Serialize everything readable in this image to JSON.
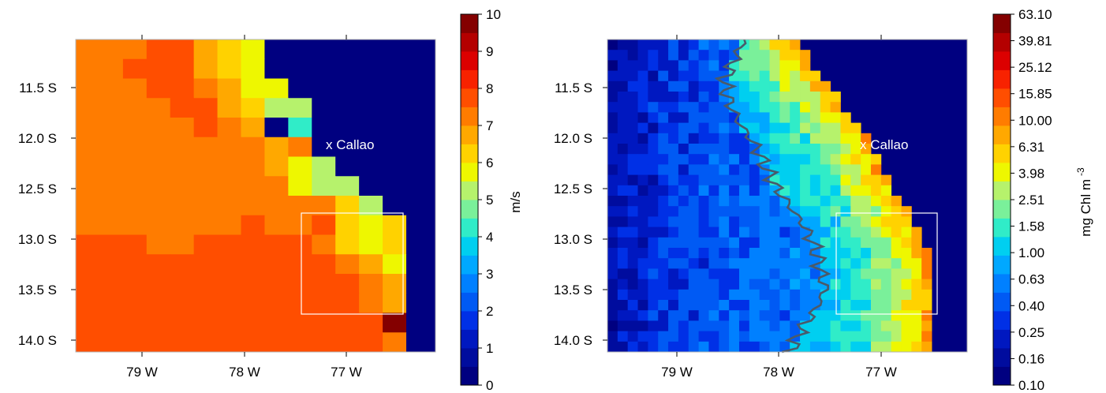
{
  "chart_data": [
    {
      "type": "heatmap",
      "title": "",
      "xlabel": "",
      "ylabel": "",
      "x_ticks": [
        "79 W",
        "78 W",
        "77 W"
      ],
      "x_tick_values": [
        -79,
        -78,
        -77
      ],
      "y_ticks": [
        "11.5 S",
        "12.0 S",
        "12.5 S",
        "13.0 S",
        "13.5 S",
        "14.0 S"
      ],
      "y_tick_values": [
        -11.5,
        -12.0,
        -12.5,
        -13.0,
        -13.5,
        -14.0
      ],
      "xlim": [
        -79.6,
        -76.05
      ],
      "ylim": [
        -14.1,
        -11.1
      ],
      "annotation": "x Callao",
      "annotation_point": {
        "lon": -77.2,
        "lat": -12.05
      },
      "box": {
        "lon": [
          -77.4,
          -76.4
        ],
        "lat": [
          -13.75,
          -12.75
        ]
      },
      "colorbar": {
        "label": "m/s",
        "ticks": [
          "0",
          "1",
          "2",
          "3",
          "4",
          "5",
          "6",
          "7",
          "8",
          "9",
          "10"
        ],
        "levels": 20
      },
      "cell_size_deg": 0.233,
      "grid_origin": {
        "lon": -79.6,
        "lat": -11.1
      },
      "values": [
        [
          7,
          7,
          7,
          7.5,
          7.5,
          6.5,
          6,
          5.5,
          0,
          0,
          0,
          0,
          0,
          0,
          0
        ],
        [
          7,
          7,
          7.5,
          7.5,
          7.5,
          6.5,
          6,
          5.5,
          0,
          0,
          0,
          0,
          0,
          0,
          0
        ],
        [
          7,
          7,
          7,
          7.5,
          7.5,
          7,
          6.5,
          5.5,
          5.5,
          0,
          0,
          0,
          0,
          0,
          0
        ],
        [
          7,
          7,
          7,
          7,
          7.5,
          7.5,
          6.5,
          6,
          5,
          5,
          0,
          0,
          0,
          0,
          0
        ],
        [
          7,
          7,
          7,
          7,
          7,
          7.5,
          7,
          6.5,
          0,
          4,
          0,
          0,
          0,
          0,
          0
        ],
        [
          7,
          7,
          7,
          7,
          7,
          7,
          7,
          7,
          6.5,
          7,
          0,
          0,
          0,
          0,
          0
        ],
        [
          7,
          7,
          7,
          7,
          7,
          7,
          7,
          7,
          6.5,
          5.5,
          5,
          0,
          0,
          0,
          0
        ],
        [
          7,
          7,
          7,
          7,
          7,
          7,
          7,
          7,
          7,
          5.5,
          5,
          5,
          0,
          0,
          0
        ],
        [
          7,
          7,
          7,
          7,
          7,
          7,
          7,
          7,
          7,
          7,
          7,
          6,
          5,
          0,
          0
        ],
        [
          7,
          7,
          7,
          7,
          7,
          7,
          7,
          7.5,
          7,
          7,
          7.5,
          6,
          5.5,
          6,
          0
        ],
        [
          7.5,
          7.5,
          7.5,
          7,
          7,
          7.5,
          7.5,
          7.5,
          7.5,
          7.5,
          7,
          6,
          5.5,
          6,
          0
        ],
        [
          7.5,
          7.5,
          7.5,
          7.5,
          7.5,
          7.5,
          7.5,
          7.5,
          7.5,
          7.5,
          7.5,
          7,
          6.5,
          5.5,
          0
        ],
        [
          7.5,
          7.5,
          7.5,
          7.5,
          7.5,
          7.5,
          7.5,
          7.5,
          7.5,
          7.5,
          7.5,
          7.5,
          7,
          6.5,
          0
        ],
        [
          7.5,
          7.5,
          7.5,
          7.5,
          7.5,
          7.5,
          7.5,
          7.5,
          7.5,
          7.5,
          7.5,
          7.5,
          7,
          6.5,
          0
        ],
        [
          7.5,
          7.5,
          7.5,
          7.5,
          7.5,
          7.5,
          7.5,
          7.5,
          7.5,
          7.5,
          7.5,
          7.5,
          7.5,
          9.5,
          0
        ],
        [
          7.5,
          7.5,
          7.5,
          7.5,
          7.5,
          7.5,
          7.5,
          7.5,
          7.5,
          7.5,
          7.5,
          7.5,
          7.5,
          7,
          0
        ]
      ]
    },
    {
      "type": "heatmap",
      "title": "",
      "xlabel": "",
      "ylabel": "",
      "x_ticks": [
        "79 W",
        "78 W",
        "77 W"
      ],
      "x_tick_values": [
        -79,
        -78,
        -77
      ],
      "y_ticks": [
        "11.5 S",
        "12.0 S",
        "12.5 S",
        "13.0 S",
        "13.5 S",
        "14.0 S"
      ],
      "y_tick_values": [
        -11.5,
        -12.0,
        -12.5,
        -13.0,
        -13.5,
        -14.0
      ],
      "xlim": [
        -79.6,
        -76.05
      ],
      "ylim": [
        -14.1,
        -11.1
      ],
      "annotation": "x Callao",
      "annotation_point": {
        "lon": -77.2,
        "lat": -12.05
      },
      "box": {
        "lon": [
          -77.4,
          -76.4
        ],
        "lat": [
          -13.75,
          -12.75
        ]
      },
      "colorbar": {
        "label": "mg Chl m",
        "label_superscript": "-3",
        "ticks": [
          "0.10",
          "0.16",
          "0.25",
          "0.40",
          "0.63",
          "1.00",
          "1.58",
          "2.51",
          "3.98",
          "6.31",
          "10.00",
          "15.85",
          "25.12",
          "39.81",
          "63.10"
        ],
        "scale": "log"
      },
      "contour_level": 1.0,
      "cell_size_deg": 0.1,
      "grid_origin": {
        "lon": -79.6,
        "lat": -11.1
      },
      "coast_profile": [
        {
          "lat": -11.1,
          "lon": -77.7
        },
        {
          "lat": -11.3,
          "lon": -77.6
        },
        {
          "lat": -11.5,
          "lon": -77.45
        },
        {
          "lat": -11.7,
          "lon": -77.3
        },
        {
          "lat": -11.9,
          "lon": -77.15
        },
        {
          "lat": -12.1,
          "lon": -77.0
        },
        {
          "lat": -12.3,
          "lon": -76.9
        },
        {
          "lat": -12.5,
          "lon": -76.8
        },
        {
          "lat": -12.7,
          "lon": -76.65
        },
        {
          "lat": -12.9,
          "lon": -76.55
        },
        {
          "lat": -13.1,
          "lon": -76.45
        },
        {
          "lat": -13.3,
          "lon": -76.4
        },
        {
          "lat": -13.5,
          "lon": -76.35
        },
        {
          "lat": -13.7,
          "lon": -76.4
        },
        {
          "lat": -13.9,
          "lon": -76.4
        },
        {
          "lat": -14.1,
          "lon": -76.4
        }
      ],
      "contour_line": [
        {
          "lat": -11.1,
          "lon": -78.25
        },
        {
          "lat": -11.3,
          "lon": -78.35
        },
        {
          "lat": -11.5,
          "lon": -78.45
        },
        {
          "lat": -11.7,
          "lon": -78.4
        },
        {
          "lat": -11.9,
          "lon": -78.3
        },
        {
          "lat": -12.1,
          "lon": -78.15
        },
        {
          "lat": -12.3,
          "lon": -78.05
        },
        {
          "lat": -12.5,
          "lon": -77.95
        },
        {
          "lat": -12.7,
          "lon": -77.8
        },
        {
          "lat": -12.9,
          "lon": -77.65
        },
        {
          "lat": -13.1,
          "lon": -77.55
        },
        {
          "lat": -13.3,
          "lon": -77.5
        },
        {
          "lat": -13.5,
          "lon": -77.45
        },
        {
          "lat": -13.7,
          "lon": -77.55
        },
        {
          "lat": -13.9,
          "lon": -77.7
        },
        {
          "lat": -14.1,
          "lon": -77.8
        }
      ]
    }
  ]
}
